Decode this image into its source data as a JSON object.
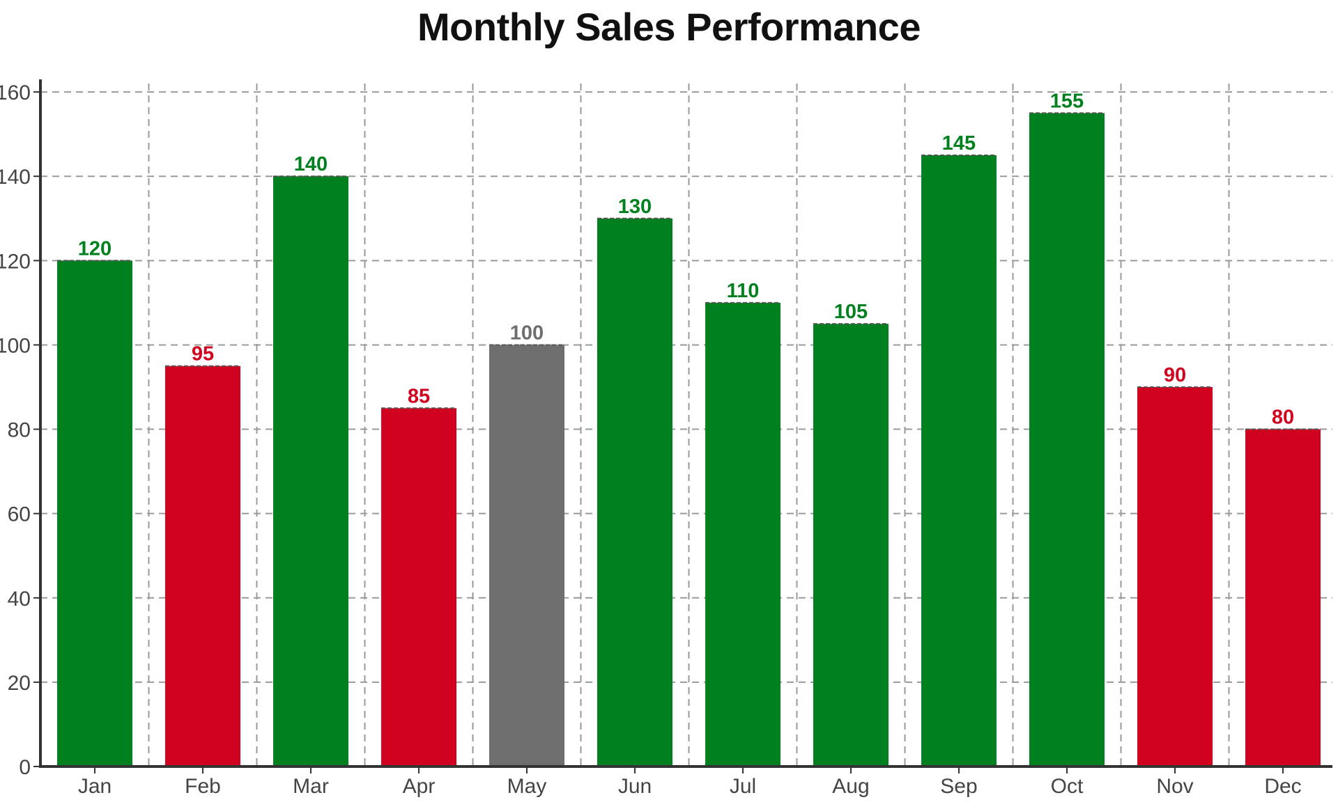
{
  "chart_data": {
    "type": "bar",
    "title": "Monthly Sales Performance",
    "xlabel": "",
    "ylabel": "",
    "categories": [
      "Jan",
      "Feb",
      "Mar",
      "Apr",
      "May",
      "Jun",
      "Jul",
      "Aug",
      "Sep",
      "Oct",
      "Nov",
      "Dec"
    ],
    "values": [
      120,
      95,
      140,
      85,
      100,
      130,
      110,
      105,
      145,
      155,
      90,
      80
    ],
    "bar_colors": [
      "#00801f",
      "#d0021f",
      "#00801f",
      "#d0021f",
      "#6e6e6e",
      "#00801f",
      "#00801f",
      "#00801f",
      "#00801f",
      "#00801f",
      "#d0021f",
      "#d0021f"
    ],
    "data_labels": [
      "120",
      "95",
      "140",
      "85",
      "100",
      "130",
      "110",
      "105",
      "145",
      "155",
      "90",
      "80"
    ],
    "ylim": [
      0,
      162
    ],
    "y_ticks": [
      0,
      20,
      40,
      60,
      80,
      100,
      120,
      140,
      160
    ],
    "grid": true,
    "grid_style": "dashed",
    "legend": "none"
  }
}
